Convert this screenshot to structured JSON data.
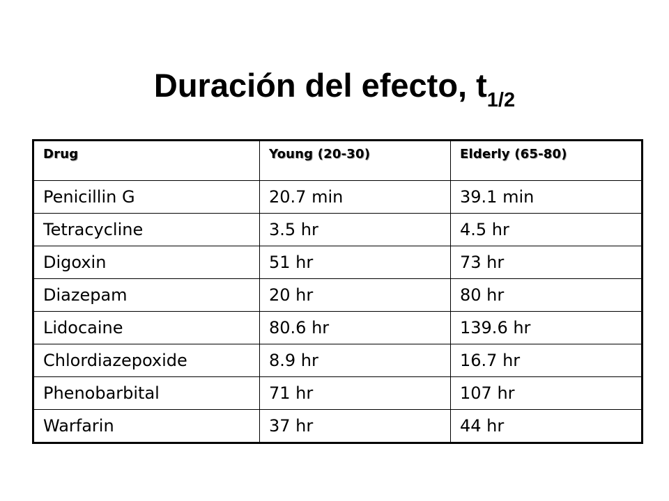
{
  "slide": {
    "title_main": "Duración del efecto, t",
    "title_subscript": "1/2"
  },
  "table": {
    "headers": [
      "Drug",
      "Young (20-30)",
      "Elderly (65-80)"
    ],
    "rows": [
      [
        "Penicillin G",
        "20.7 min",
        "39.1 min"
      ],
      [
        "Tetracycline",
        "3.5 hr",
        "4.5 hr"
      ],
      [
        "Digoxin",
        "51 hr",
        "73 hr"
      ],
      [
        "Diazepam",
        "20 hr",
        "80 hr"
      ],
      [
        "Lidocaine",
        "80.6 hr",
        "139.6 hr"
      ],
      [
        "Chlordiazepoxide",
        "8.9 hr",
        "16.7 hr"
      ],
      [
        "Phenobarbital",
        "71 hr",
        "107 hr"
      ],
      [
        "Warfarin",
        "37 hr",
        "44 hr"
      ]
    ]
  }
}
